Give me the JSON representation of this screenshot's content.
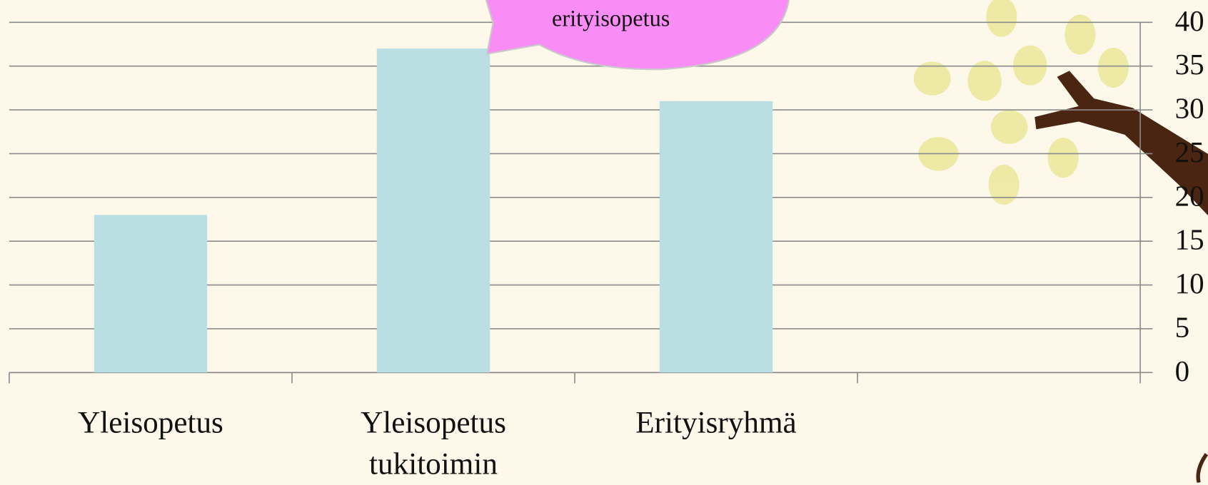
{
  "chart_data": {
    "type": "bar",
    "annotation": "erityisopetus",
    "categories": [
      "Yleisopetus",
      "Yleisopetus tukitoimin",
      "Erityisryhmä",
      null
    ],
    "values": [
      18,
      37,
      31,
      null
    ],
    "color": "#badfe3",
    "ylim": [
      0,
      40
    ],
    "yticks": [
      0,
      5,
      10,
      15,
      20,
      25,
      30,
      35,
      40
    ],
    "grid": true,
    "y_axis_side": "right"
  }
}
